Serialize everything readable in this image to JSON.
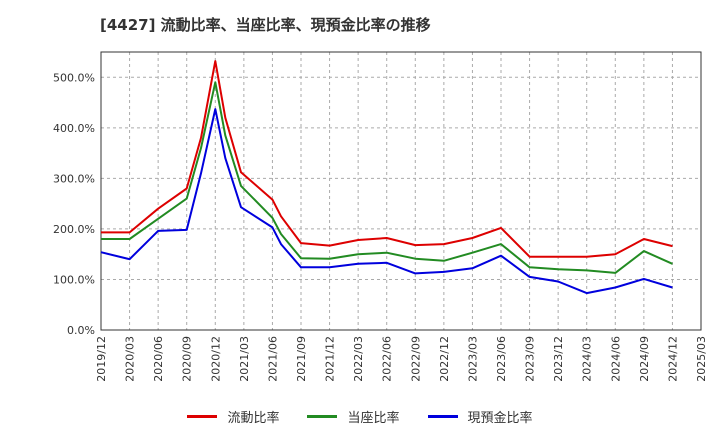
{
  "chart_data": {
    "type": "line",
    "title": "[4427]  流動比率、当座比率、現預金比率の推移",
    "x": [
      "2019/12",
      "2020/03",
      "2020/06",
      "2020/09",
      "2020/12",
      "2021/03",
      "2021/06",
      "2021/09",
      "2021/12",
      "2022/03",
      "2022/06",
      "2022/09",
      "2022/12",
      "2023/03",
      "2023/06",
      "2023/09",
      "2023/12",
      "2024/03",
      "2024/06",
      "2024/09",
      "2024/12",
      "2025/03"
    ],
    "ylim": [
      0,
      550
    ],
    "yticks": [
      0,
      100,
      200,
      300,
      400,
      500
    ],
    "ytick_labels": [
      "0.0%",
      "100.0%",
      "200.0%",
      "300.0%",
      "400.0%",
      "500.0%"
    ],
    "grid": true,
    "legend_position": "bottom",
    "series": [
      {
        "name": "流動比率",
        "color": "#dd0000",
        "points": [
          [
            0,
            193
          ],
          [
            1,
            193
          ],
          [
            2,
            240
          ],
          [
            3,
            280
          ],
          [
            3.5,
            380
          ],
          [
            4,
            532
          ],
          [
            4.35,
            420
          ],
          [
            4.9,
            312
          ],
          [
            6,
            258
          ],
          [
            6.3,
            225
          ],
          [
            7,
            172
          ],
          [
            8,
            167
          ],
          [
            9,
            178
          ],
          [
            10,
            182
          ],
          [
            11,
            168
          ],
          [
            12,
            170
          ],
          [
            13,
            182
          ],
          [
            14,
            202
          ],
          [
            15,
            145
          ],
          [
            16,
            145
          ],
          [
            17,
            145
          ],
          [
            18,
            150
          ],
          [
            19,
            180
          ],
          [
            20,
            166
          ]
        ]
      },
      {
        "name": "当座比率",
        "color": "#228b22",
        "points": [
          [
            0,
            180
          ],
          [
            1,
            180
          ],
          [
            2,
            220
          ],
          [
            3,
            260
          ],
          [
            3.5,
            360
          ],
          [
            4,
            490
          ],
          [
            4.35,
            385
          ],
          [
            4.9,
            285
          ],
          [
            6,
            222
          ],
          [
            6.3,
            190
          ],
          [
            7,
            142
          ],
          [
            8,
            141
          ],
          [
            9,
            150
          ],
          [
            10,
            153
          ],
          [
            11,
            141
          ],
          [
            12,
            137
          ],
          [
            13,
            153
          ],
          [
            14,
            170
          ],
          [
            15,
            124
          ],
          [
            16,
            120
          ],
          [
            17,
            118
          ],
          [
            18,
            113
          ],
          [
            19,
            156
          ],
          [
            20,
            131
          ]
        ]
      },
      {
        "name": "現預金比率",
        "color": "#0000dd",
        "points": [
          [
            0,
            154
          ],
          [
            1,
            140
          ],
          [
            2,
            196
          ],
          [
            3,
            198
          ],
          [
            3.5,
            310
          ],
          [
            4,
            437
          ],
          [
            4.35,
            340
          ],
          [
            4.9,
            243
          ],
          [
            6,
            203
          ],
          [
            6.3,
            170
          ],
          [
            7,
            124
          ],
          [
            8,
            124
          ],
          [
            9,
            131
          ],
          [
            10,
            133
          ],
          [
            11,
            112
          ],
          [
            12,
            115
          ],
          [
            13,
            122
          ],
          [
            14,
            147
          ],
          [
            15,
            105
          ],
          [
            16,
            96
          ],
          [
            17,
            73
          ],
          [
            18,
            84
          ],
          [
            19,
            101
          ],
          [
            20,
            84
          ]
        ]
      }
    ]
  }
}
